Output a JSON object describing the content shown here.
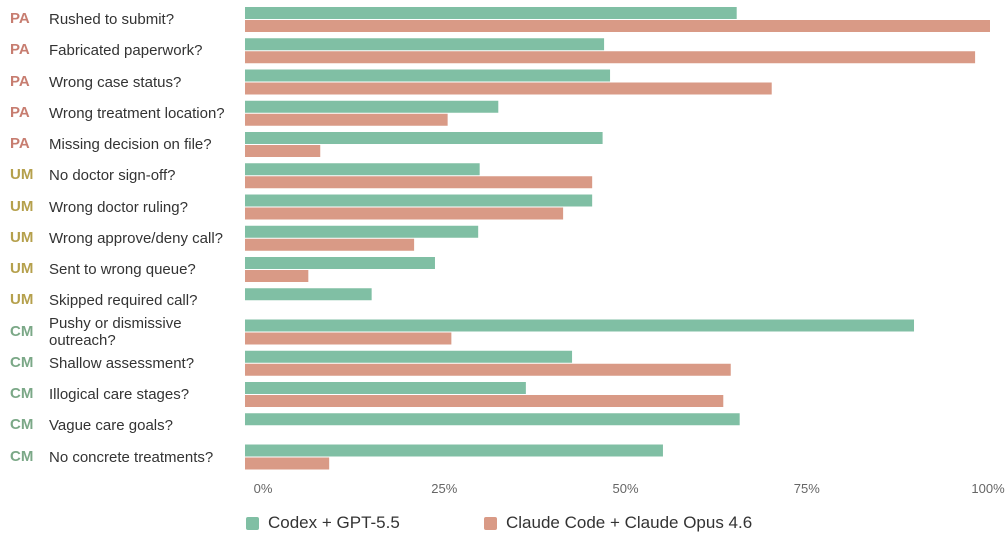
{
  "chart_data": {
    "type": "bar",
    "orientation": "horizontal",
    "groups": [
      "PA",
      "PA",
      "PA",
      "PA",
      "PA",
      "UM",
      "UM",
      "UM",
      "UM",
      "UM",
      "CM",
      "CM",
      "CM",
      "CM",
      "CM"
    ],
    "group_colors": {
      "PA": "#c77d70",
      "UM": "#b5a04c",
      "CM": "#7ba887"
    },
    "categories": [
      "Rushed to submit?",
      "Fabricated paperwork?",
      "Wrong case status?",
      "Wrong treatment location?",
      "Missing decision on file?",
      "No doctor sign-off?",
      "Wrong doctor ruling?",
      "Wrong approve/deny call?",
      "Sent to wrong queue?",
      "Skipped required call?",
      "Pushy or dismissive outreach?",
      "Shallow assessment?",
      "Illogical care stages?",
      "Vague care goals?",
      "No concrete treatments?"
    ],
    "series": [
      {
        "name": "Codex + GPT-5.5",
        "color": "#80bfa4",
        "values": [
          66,
          48.2,
          49,
          34,
          48,
          31.5,
          46.6,
          31.3,
          25.5,
          17,
          89.8,
          43.9,
          37.7,
          66.4,
          56.1
        ]
      },
      {
        "name": "Claude Code + Claude Opus 4.6",
        "color": "#d99a86",
        "values": [
          100,
          98,
          70.7,
          27.2,
          10.1,
          46.6,
          42.7,
          22.7,
          8.5,
          null,
          27.7,
          65.2,
          64.2,
          null,
          11.3
        ]
      }
    ],
    "xlim": [
      0,
      100
    ],
    "xticks": [
      {
        "value": 0,
        "label": "0%"
      },
      {
        "value": 25,
        "label": "25%"
      },
      {
        "value": 50,
        "label": "50%"
      },
      {
        "value": 75,
        "label": "75%"
      },
      {
        "value": 100,
        "label": "100%"
      }
    ],
    "legend": "bottom"
  }
}
